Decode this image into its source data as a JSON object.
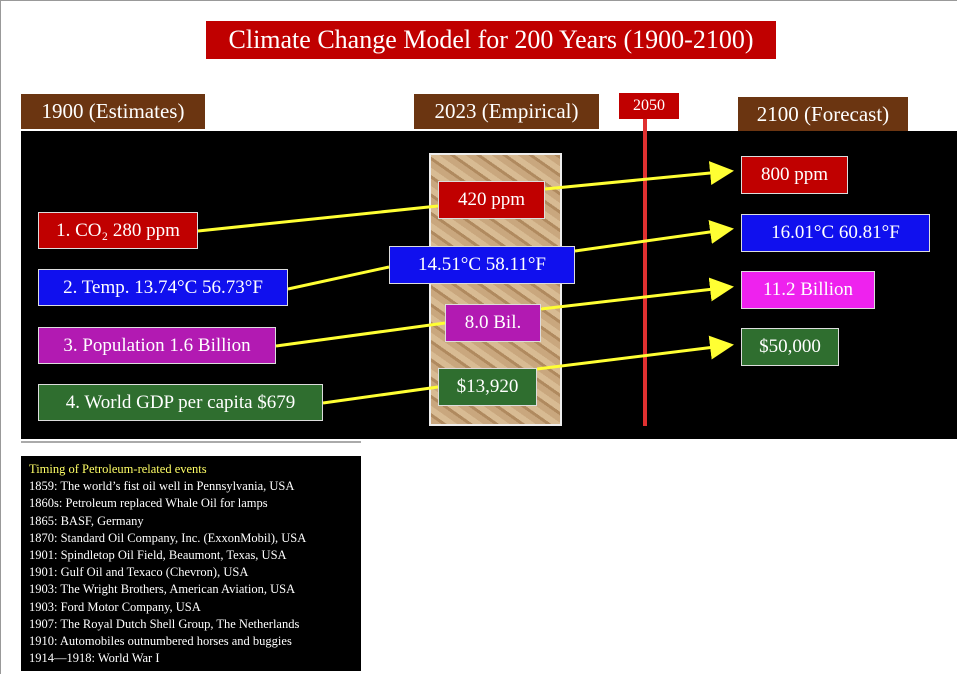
{
  "header": {
    "title": "Climate Change Model for 200 Years (1900-2100)"
  },
  "columns": {
    "start": "1900 (Estimates)",
    "now": "2023 (Empirical)",
    "marker": "2050",
    "end": "2100 (Forecast)"
  },
  "rows": [
    {
      "start": "1. CO₂ 280 ppm",
      "now": "420 ppm",
      "end": "800 ppm"
    },
    {
      "start": "2. Temp. 13.74°C 56.73°F",
      "now": "14.51°C 58.11°F",
      "end": "16.01°C 60.81°F"
    },
    {
      "start": "3. Population 1.6 Billion",
      "now": "8.0 Bil.",
      "end": "11.2 Billion"
    },
    {
      "start": "4. World GDP per capita $679",
      "now": "$13,920",
      "end": "$50,000"
    }
  ],
  "timeline": {
    "title": "Timing of Petroleum-related events",
    "events": [
      "1859: The world’s fist oil well in Pennsylvania, USA",
      "1860s: Petroleum replaced Whale Oil for lamps",
      "1865: BASF, Germany",
      "1870: Standard Oil Company, Inc. (ExxonMobil), USA",
      "1901: Spindletop Oil Field, Beaumont, Texas, USA",
      "1901: Gulf Oil and Texaco  (Chevron), USA",
      "1903: The Wright Brothers, American Aviation, USA",
      "1903: Ford Motor Company, USA",
      "1907: The Royal Dutch Shell Group, The Netherlands",
      "1910:  Automobiles outnumbered horses and buggies",
      "1914—1918: World War I"
    ]
  }
}
